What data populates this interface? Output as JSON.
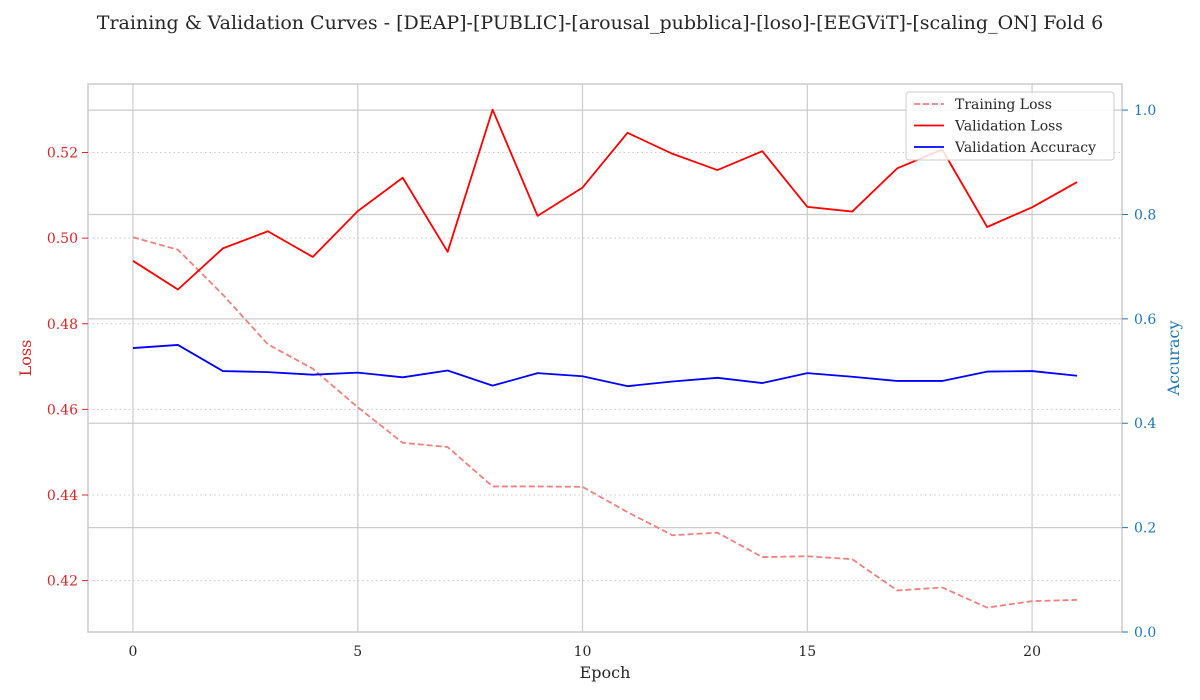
{
  "chart_data": {
    "type": "line",
    "title": "Training & Validation Curves - [DEAP]-[PUBLIC]-[arousal_pubblica]-[loso]-[EEGViT]-[scaling_ON] Fold 6",
    "xlabel": "Epoch",
    "ylabel_left": "Loss",
    "ylabel_right": "Accuracy",
    "xlim": [
      -1,
      22
    ],
    "ylim_left": [
      0.408,
      0.536
    ],
    "ylim_right": [
      0.0,
      1.05
    ],
    "x_ticks": [
      0,
      5,
      10,
      15,
      20
    ],
    "y_ticks_left": [
      0.42,
      0.44,
      0.46,
      0.48,
      0.5,
      0.52
    ],
    "y_ticks_right": [
      0.0,
      0.2,
      0.4,
      0.6,
      0.8,
      1.0
    ],
    "grid": true,
    "legend_position": "top-right",
    "colors": {
      "left_axis": "#d62728",
      "right_axis": "#1f77b4"
    },
    "x": [
      0,
      1,
      2,
      3,
      4,
      5,
      6,
      7,
      8,
      9,
      10,
      11,
      12,
      13,
      14,
      15,
      16,
      17,
      18,
      19,
      20,
      21
    ],
    "series": [
      {
        "name": "Training Loss",
        "axis": "left",
        "color": "#f08080",
        "dash": true,
        "values": [
          0.5002,
          0.4973,
          0.4868,
          0.4752,
          0.4695,
          0.4605,
          0.4522,
          0.4512,
          0.442,
          0.442,
          0.4419,
          0.436,
          0.4306,
          0.4312,
          0.4255,
          0.4257,
          0.425,
          0.4177,
          0.4184,
          0.4137,
          0.4152,
          0.4155
        ]
      },
      {
        "name": "Validation Loss",
        "axis": "left",
        "color": "#ff0000",
        "dash": false,
        "values": [
          0.4947,
          0.488,
          0.4976,
          0.5016,
          0.4956,
          0.5063,
          0.5141,
          0.4968,
          0.53,
          0.5052,
          0.5118,
          0.5246,
          0.5197,
          0.5159,
          0.5203,
          0.5073,
          0.5062,
          0.5163,
          0.5207,
          0.5026,
          0.5072,
          0.5131
        ]
      },
      {
        "name": "Validation Accuracy",
        "axis": "right",
        "color": "#0000ff",
        "dash": false,
        "values": [
          0.544,
          0.55,
          0.5,
          0.498,
          0.493,
          0.497,
          0.488,
          0.501,
          0.472,
          0.496,
          0.49,
          0.471,
          0.48,
          0.487,
          0.477,
          0.496,
          0.489,
          0.481,
          0.481,
          0.499,
          0.5,
          0.491
        ]
      }
    ]
  }
}
